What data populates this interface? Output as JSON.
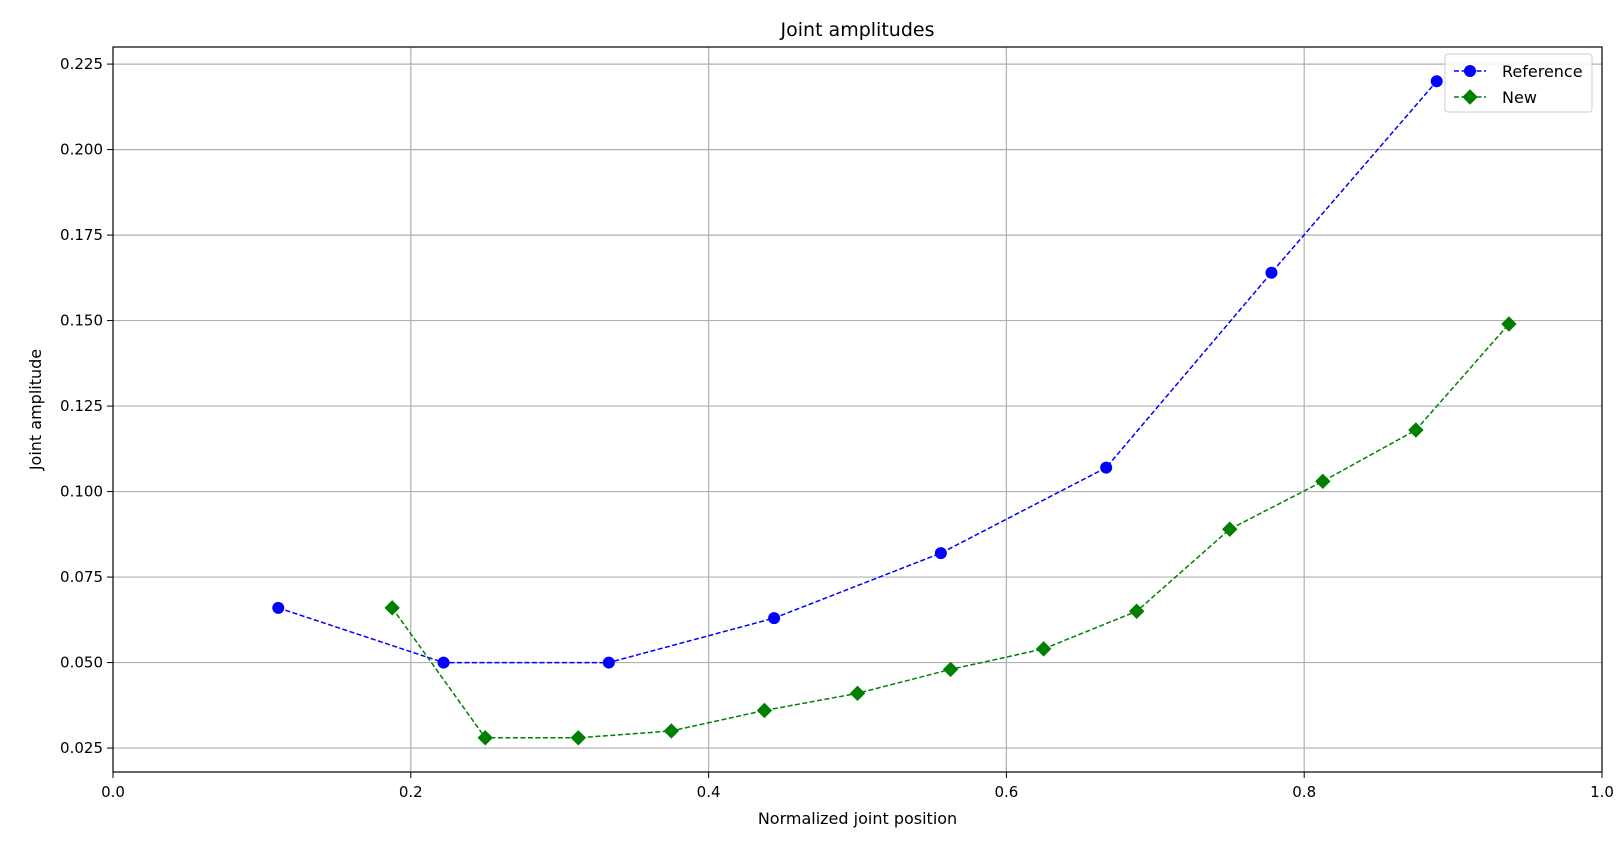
{
  "chart_data": {
    "type": "line",
    "title": "Joint amplitudes",
    "xlabel": "Normalized joint position",
    "ylabel": "Joint amplitude",
    "xlim": [
      0.0,
      1.0
    ],
    "ylim": [
      0.018,
      0.23
    ],
    "xticks": [
      0.0,
      0.2,
      0.4,
      0.6,
      0.8,
      1.0
    ],
    "xtick_labels": [
      "0.0",
      "0.2",
      "0.4",
      "0.6",
      "0.8",
      "1.0"
    ],
    "yticks": [
      0.025,
      0.05,
      0.075,
      0.1,
      0.125,
      0.15,
      0.175,
      0.2,
      0.225
    ],
    "ytick_labels": [
      "0.025",
      "0.050",
      "0.075",
      "0.100",
      "0.125",
      "0.150",
      "0.175",
      "0.200",
      "0.225"
    ],
    "grid": true,
    "legend_position": "top-right",
    "series": [
      {
        "name": "Reference",
        "color": "#0000ff",
        "marker": "circle",
        "line_style": "dashed",
        "x": [
          0.111,
          0.222,
          0.333,
          0.444,
          0.556,
          0.667,
          0.778,
          0.889
        ],
        "y": [
          0.066,
          0.05,
          0.05,
          0.063,
          0.082,
          0.107,
          0.164,
          0.22
        ]
      },
      {
        "name": "New",
        "color": "#008000",
        "marker": "diamond",
        "line_style": "dashed",
        "x": [
          0.1875,
          0.25,
          0.3125,
          0.375,
          0.4375,
          0.5,
          0.5625,
          0.625,
          0.6875,
          0.75,
          0.8125,
          0.875,
          0.9375
        ],
        "y": [
          0.066,
          0.028,
          0.028,
          0.03,
          0.036,
          0.041,
          0.048,
          0.054,
          0.065,
          0.089,
          0.103,
          0.118,
          0.149
        ]
      }
    ]
  }
}
